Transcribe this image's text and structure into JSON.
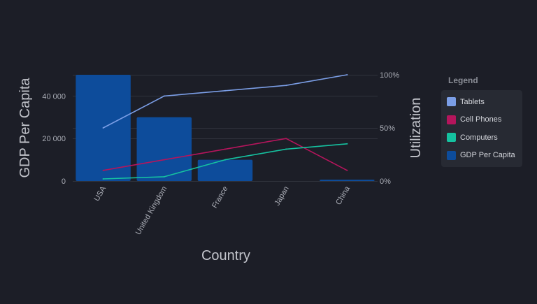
{
  "chart_data": {
    "type": "bar",
    "categories": [
      "USA",
      "United Kingdom",
      "France",
      "Japan",
      "China"
    ],
    "xlabel": "Country",
    "ylabel": "GDP Per Capita",
    "y2label": "Utilization",
    "ylim": [
      0,
      50000
    ],
    "y2lim": [
      0,
      100
    ],
    "yticks": [
      0,
      20000,
      40000
    ],
    "ytick_labels": [
      "0",
      "20 000",
      "40 000"
    ],
    "y2ticks": [
      0,
      50,
      100
    ],
    "y2tick_labels": [
      "0%",
      "50%",
      "100%"
    ],
    "grid": true,
    "legend_position": "right",
    "series": [
      {
        "name": "GDP Per Capita",
        "type": "bar",
        "axis": "left",
        "color": "#0d4c9b",
        "values": [
          50000,
          30000,
          10000,
          0,
          600
        ]
      },
      {
        "name": "Tablets",
        "type": "line",
        "axis": "right",
        "color": "#7b9ee6",
        "values": [
          50,
          80,
          85,
          90,
          100
        ]
      },
      {
        "name": "Cell Phones",
        "type": "line",
        "axis": "right",
        "color": "#b5155c",
        "values": [
          10,
          20,
          30,
          40,
          10
        ]
      },
      {
        "name": "Computers",
        "type": "line",
        "axis": "right",
        "color": "#15c2a0",
        "values": [
          2,
          4,
          20,
          30,
          35
        ]
      }
    ]
  },
  "legend": {
    "title": "Legend",
    "items": [
      {
        "label": "Tablets",
        "color": "#7b9ee6"
      },
      {
        "label": "Cell Phones",
        "color": "#b5155c"
      },
      {
        "label": "Computers",
        "color": "#15c2a0"
      },
      {
        "label": "GDP Per Capita",
        "color": "#0d4c9b"
      }
    ]
  }
}
